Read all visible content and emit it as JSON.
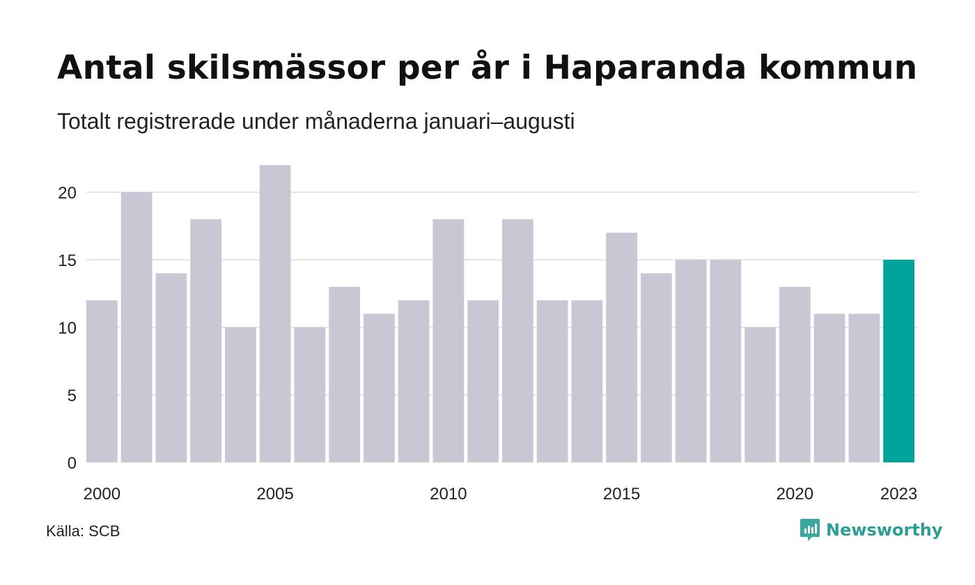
{
  "title": "Antal skilsmässor per år i Haparanda kommun",
  "subtitle": "Totalt registrerade under månaderna januari–augusti",
  "source": "Källa: SCB",
  "brand": {
    "name": "Newsworthy",
    "icon": "newsworthy-logo-icon"
  },
  "colors": {
    "bar": "#c8c7d3",
    "highlight": "#00a39a",
    "grid": "#e6e6e6"
  },
  "chart_data": {
    "type": "bar",
    "categories": [
      2000,
      2001,
      2002,
      2003,
      2004,
      2005,
      2006,
      2007,
      2008,
      2009,
      2010,
      2011,
      2012,
      2013,
      2014,
      2015,
      2016,
      2017,
      2018,
      2019,
      2020,
      2021,
      2022,
      2023
    ],
    "values": [
      12,
      20,
      14,
      18,
      10,
      22,
      10,
      13,
      11,
      12,
      18,
      12,
      18,
      12,
      12,
      17,
      14,
      15,
      15,
      10,
      13,
      11,
      11,
      15
    ],
    "highlight_category": 2023,
    "x_tick_labels": [
      "2000",
      "2005",
      "2010",
      "2015",
      "2020",
      "2023"
    ],
    "y_ticks": [
      0,
      5,
      10,
      15,
      20
    ],
    "ylim": [
      0,
      22
    ],
    "xlabel": "",
    "ylabel": "",
    "grid": true,
    "legend": "none"
  }
}
